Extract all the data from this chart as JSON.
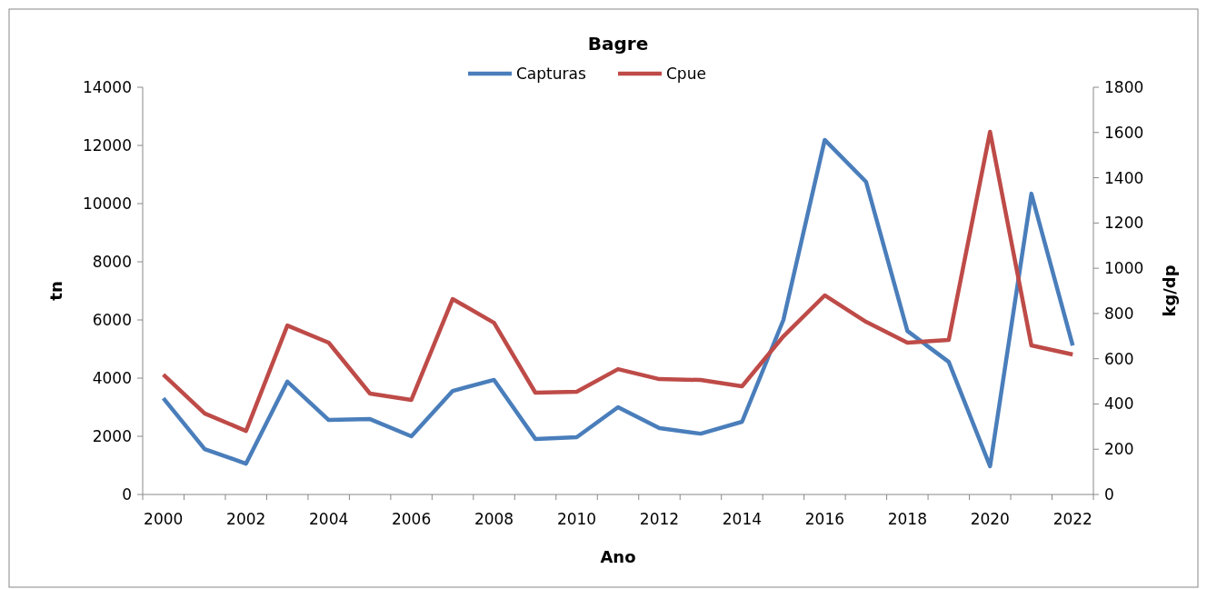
{
  "chart_data": {
    "type": "line",
    "title": "Bagre",
    "xlabel": "Ano",
    "ylabel": "tn",
    "y2label": "kg/dp",
    "categories": [
      "2000",
      null,
      "2002",
      null,
      "2004",
      null,
      "2006",
      null,
      "2008",
      null,
      "2010",
      null,
      "2012",
      null,
      "2014",
      null,
      "2016",
      null,
      "2018",
      null,
      "2020",
      null,
      "2022"
    ],
    "series": [
      {
        "name": "Capturas",
        "color": "#4a7ebb",
        "values": [
          3310,
          1560,
          1060,
          3880,
          2560,
          2590,
          2000,
          3560,
          3940,
          1910,
          1970,
          3000,
          2280,
          2090,
          2500,
          6000,
          12190,
          10750,
          5620,
          4560,
          970,
          10340,
          5120
        ]
      },
      {
        "name": "Cpue",
        "color": "#be4b48",
        "axis": "y2",
        "values": [
          530,
          358,
          281,
          747,
          671,
          446,
          418,
          864,
          759,
          450,
          454,
          554,
          510,
          506,
          478,
          699,
          880,
          763,
          671,
          683,
          1603,
          659,
          619
        ]
      }
    ],
    "ylim": [
      0,
      14000
    ],
    "yticks": [
      0,
      2000,
      4000,
      6000,
      8000,
      10000,
      12000,
      14000
    ],
    "y2lim": [
      0,
      1800
    ],
    "y2ticks": [
      0,
      200,
      400,
      600,
      800,
      1000,
      1200,
      1400,
      1600,
      1800
    ],
    "legend": "top",
    "grid": false,
    "marker": "none",
    "line_style": "solid"
  }
}
